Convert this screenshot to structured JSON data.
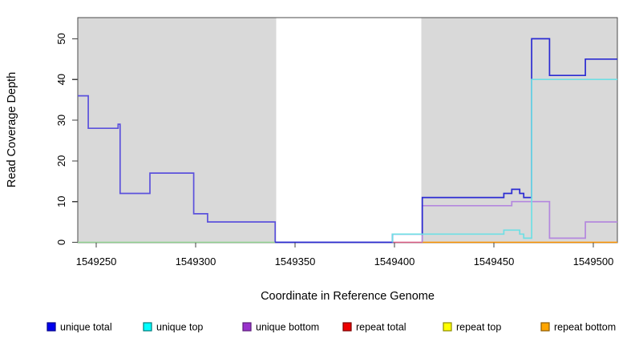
{
  "chart_data": {
    "type": "line",
    "subtype": "step",
    "title": "",
    "xlabel": "Coordinate in Reference Genome",
    "ylabel": "Read Coverage Depth",
    "xlim": [
      1549240.7,
      1549512.1
    ],
    "ylim": [
      0,
      55.2
    ],
    "x_ticks": [
      "1549250",
      "1549300",
      "1549350",
      "1549400",
      "1549450",
      "1549500"
    ],
    "x_tick_values": [
      1549250,
      1549300,
      1549350,
      1549400,
      1549450,
      1549500
    ],
    "y_ticks": [
      "0",
      "10",
      "20",
      "30",
      "40",
      "50"
    ],
    "y_tick_values": [
      0,
      10,
      20,
      30,
      40,
      50
    ],
    "grid": false,
    "legend_position": "bottom",
    "colors": {
      "shading": "#D9D9D9",
      "plot_background": "#FFFFFF",
      "plot_border": "#4A4A4A",
      "tick": "#404040",
      "text": "#000000"
    },
    "shaded_regions": [
      {
        "x0": 1549240.7,
        "x1": 1549340.5
      },
      {
        "x0": 1549413.5,
        "x1": 1549512.1
      }
    ],
    "unshaded_window": {
      "x0": 1549340.5,
      "x1": 1549413.5
    },
    "baseline_segments": [
      {
        "x0": 1549240.7,
        "x1": 1549340.0,
        "value": 0,
        "color": "#94D494"
      },
      {
        "x0": 1549399.0,
        "x1": 1549414.0,
        "value": 0,
        "color": "#DD5F87"
      },
      {
        "x0": 1549414.0,
        "x1": 1549512.1,
        "value": 0,
        "color": "#FF9500"
      }
    ],
    "series": [
      {
        "name": "unique total",
        "legend_fill": "#0000EE",
        "legend_border": "#00008B",
        "line_color": "#2B2BD2",
        "line_color_left": "#5B51DC",
        "split_x": 1549340,
        "draw": true,
        "steps": [
          [
            1549240.7,
            36
          ],
          [
            1549246,
            28
          ],
          [
            1549261,
            29
          ],
          [
            1549262,
            12
          ],
          [
            1549277,
            17
          ],
          [
            1549299,
            7
          ],
          [
            1549306,
            5
          ],
          [
            1549340,
            0
          ],
          [
            1549399,
            2
          ],
          [
            1549414,
            11
          ],
          [
            1549455,
            12
          ],
          [
            1549459,
            13
          ],
          [
            1549463,
            12
          ],
          [
            1549465,
            11
          ],
          [
            1549469,
            50
          ],
          [
            1549478,
            41
          ],
          [
            1549496,
            45
          ]
        ],
        "end": 1549512.1
      },
      {
        "name": "unique top",
        "legend_fill": "#00FFFF",
        "legend_border": "#007A7A",
        "line_color": "#6FDFE4",
        "draw": true,
        "steps": [
          [
            1549399,
            0
          ],
          [
            1549399,
            2
          ],
          [
            1549455,
            3
          ],
          [
            1549463,
            2
          ],
          [
            1549465,
            1
          ],
          [
            1549469,
            40
          ]
        ],
        "end": 1549512.1
      },
      {
        "name": "unique bottom",
        "legend_fill": "#9932CC",
        "legend_border": "#5C1E7A",
        "line_color": "#B488DE",
        "draw": true,
        "steps": [
          [
            1549414,
            0
          ],
          [
            1549414,
            9
          ],
          [
            1549459,
            10
          ],
          [
            1549478,
            1
          ],
          [
            1549496,
            5
          ]
        ],
        "end": 1549512.1
      },
      {
        "name": "repeat total",
        "legend_fill": "#EE0000",
        "legend_border": "#7A0000",
        "line_color": "#DD5F87",
        "draw": false,
        "steps": [
          [
            1549240.7,
            0
          ]
        ],
        "end": 1549512.1
      },
      {
        "name": "repeat top",
        "legend_fill": "#FFFF00",
        "legend_border": "#8B8B00",
        "line_color": "#E8E840",
        "draw": false,
        "steps": [
          [
            1549240.7,
            0
          ]
        ],
        "end": 1549512.1
      },
      {
        "name": "repeat bottom",
        "legend_fill": "#FFA500",
        "legend_border": "#8B5A00",
        "line_color": "#FF9500",
        "draw": false,
        "steps": [
          [
            1549240.7,
            0
          ]
        ],
        "end": 1549512.1
      }
    ]
  }
}
